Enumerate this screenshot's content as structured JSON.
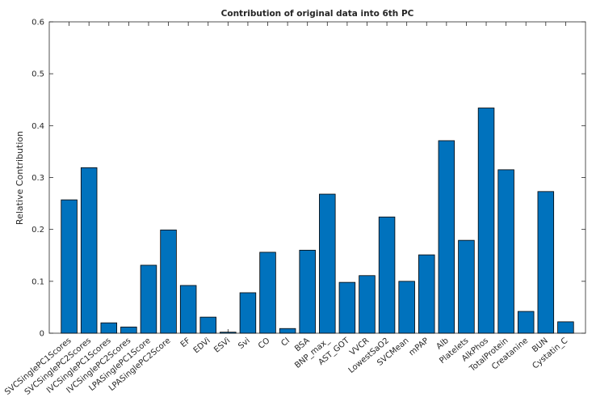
{
  "chart_data": {
    "type": "bar",
    "title": "Contribution of original data into 6th PC",
    "ylabel": "Relative Contribution",
    "categories": [
      "SVCSinglePC1Scores",
      "SVCSinglePC2Scores",
      "IVCSinglePC1Scores",
      "IVCSinglePC2Scores",
      "LPASinglePC1Score",
      "LPASinglePC2Score",
      "EF",
      "EDVi",
      "ESVi",
      "Svi",
      "CO",
      "CI",
      "BSA",
      "BNP_max_",
      "AST_GOT",
      "VVCR",
      "LowestSaO2",
      "SVCMean",
      "mPAP",
      "Alb",
      "Platelets",
      "AlkPhos",
      "TotalProtein",
      "Creatanine",
      "BUN",
      "Cystatin_C"
    ],
    "values": [
      0.257,
      0.319,
      0.02,
      0.012,
      0.131,
      0.199,
      0.092,
      0.031,
      0.002,
      0.078,
      0.156,
      0.009,
      0.16,
      0.268,
      0.098,
      0.111,
      0.224,
      0.1,
      0.151,
      0.371,
      0.179,
      0.434,
      0.315,
      0.042,
      0.273,
      0.022
    ],
    "color": "#0072bd",
    "ylim": [
      0,
      0.6
    ],
    "yticks": [
      0,
      0.1,
      0.2,
      0.3,
      0.4,
      0.5,
      0.6
    ],
    "grid": false
  }
}
